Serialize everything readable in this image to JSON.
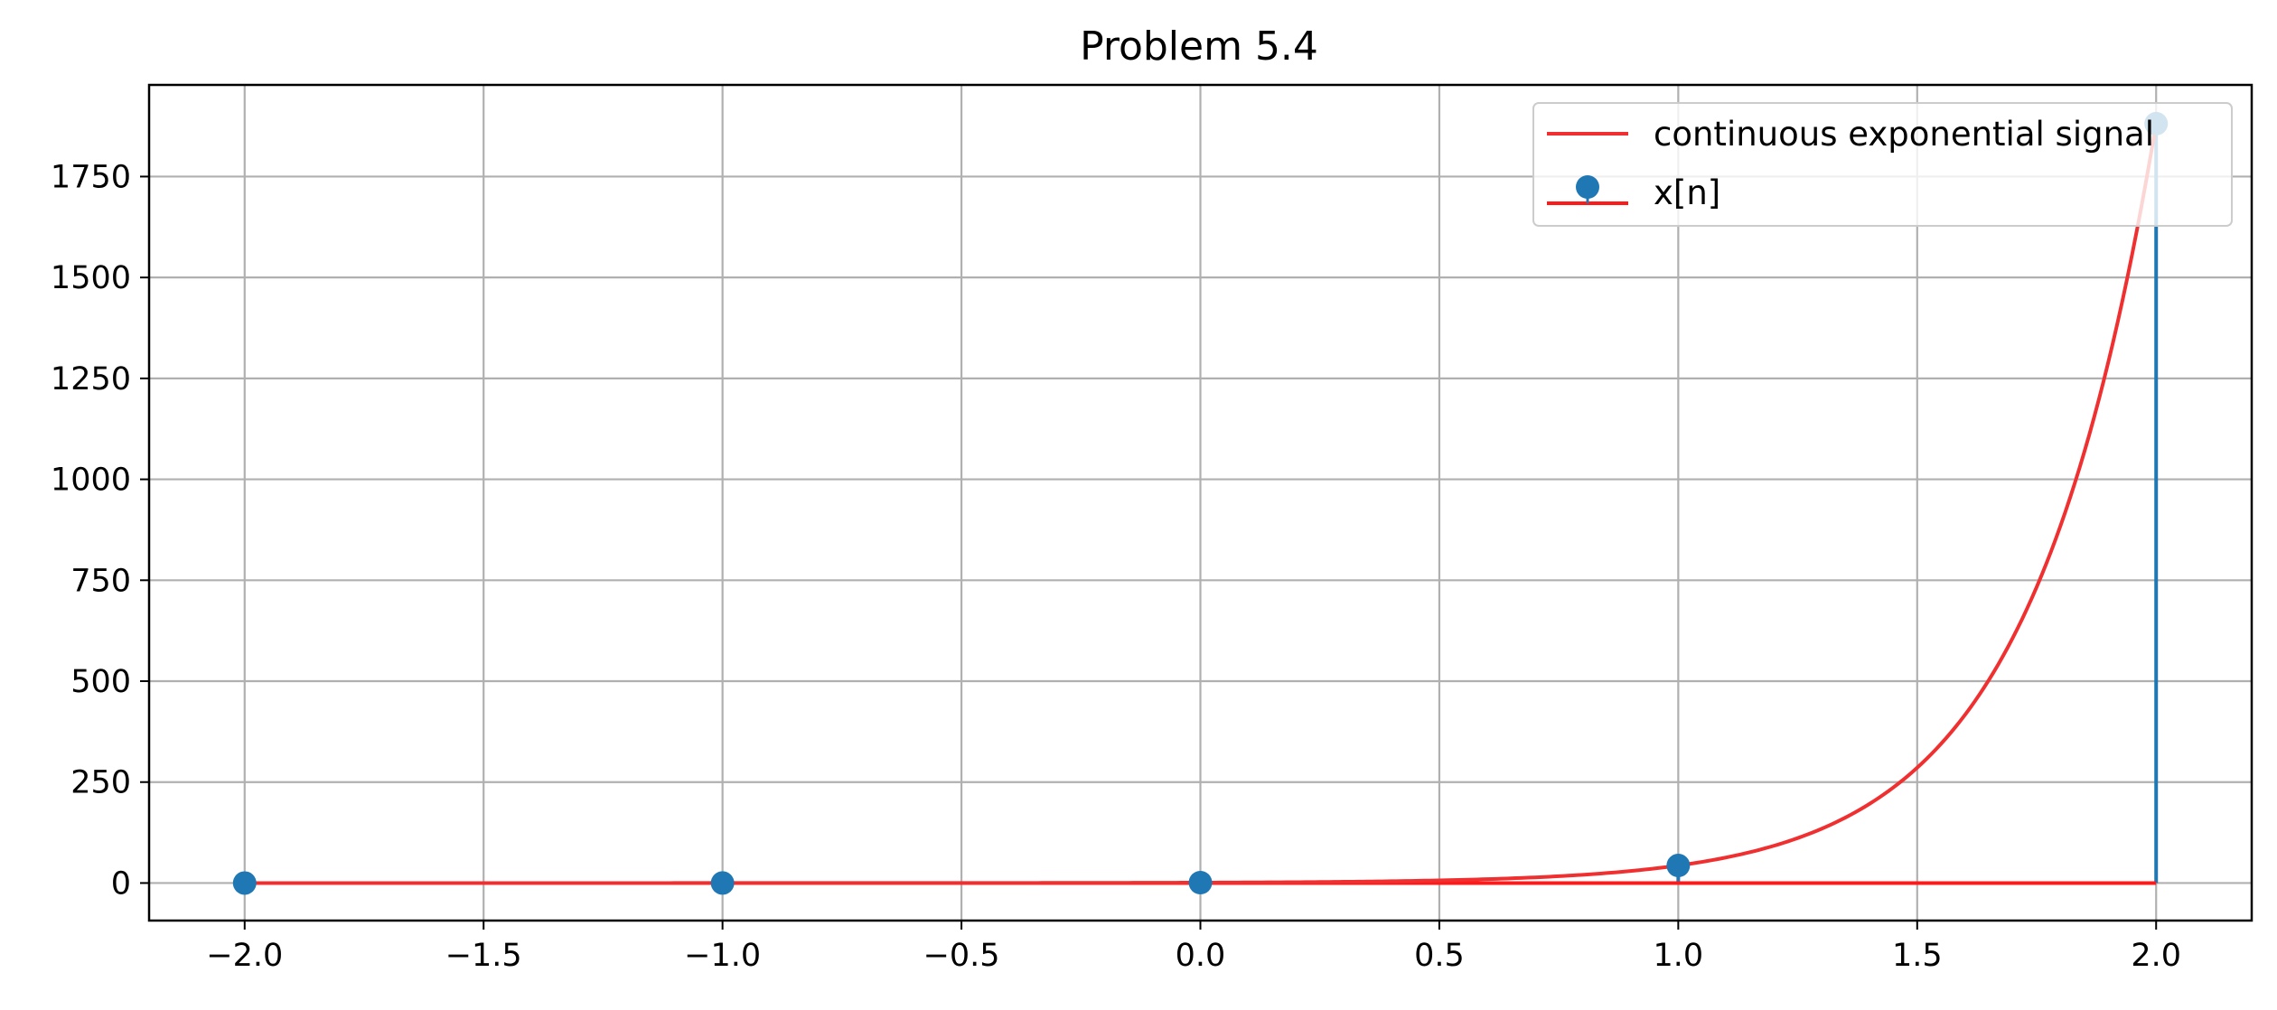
{
  "chart_data": {
    "type": "line",
    "title": "Problem 5.4",
    "xlabel": "",
    "ylabel": "",
    "xlim": [
      -2.2,
      2.2
    ],
    "ylim": [
      -93,
      1977
    ],
    "x_ticks": [
      -2.0,
      -1.5,
      -1.0,
      -0.5,
      0.0,
      0.5,
      1.0,
      1.5,
      2.0
    ],
    "x_tick_labels": [
      "−2.0",
      "−1.5",
      "−1.0",
      "−0.5",
      "0.0",
      "0.5",
      "1.0",
      "1.5",
      "2.0"
    ],
    "y_ticks": [
      0,
      250,
      500,
      750,
      1000,
      1250,
      1500,
      1750
    ],
    "y_tick_labels": [
      "0",
      "250",
      "500",
      "750",
      "1000",
      "1250",
      "1500",
      "1750"
    ],
    "grid": true,
    "legend_position": "top-right",
    "series": [
      {
        "name": "continuous exponential signal",
        "kind": "line",
        "color": "#f03030",
        "function": "exp",
        "x_range": [
          -2,
          2
        ],
        "growth_rate": 3.77,
        "scale": 1.0,
        "sample_values": [
          {
            "x": -2.0,
            "y": 0.0
          },
          {
            "x": 0.0,
            "y": 1
          },
          {
            "x": 1.0,
            "y": 43.4
          },
          {
            "x": 1.5,
            "y": 286
          },
          {
            "x": 2.0,
            "y": 1881
          }
        ]
      },
      {
        "name": "x[n]",
        "kind": "stem",
        "marker_color": "#1f77b4",
        "stem_color": "#1f77b4",
        "baseline_color": "#ff1a1a",
        "x": [
          -2,
          -1,
          0,
          1,
          2
        ],
        "values": [
          0.0005,
          0.023,
          1,
          43.4,
          1881
        ]
      }
    ]
  }
}
